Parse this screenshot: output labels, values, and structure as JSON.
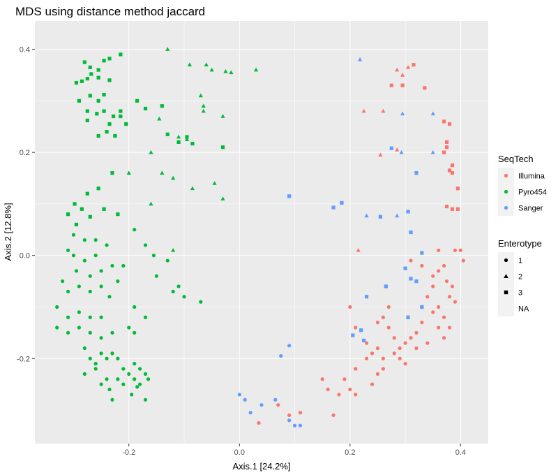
{
  "chart_data": {
    "type": "scatter",
    "title": "MDS using distance method jaccard",
    "xlabel": "Axis.1   [24.2%]",
    "ylabel": "Axis.2   [12.8%]",
    "xlim": [
      -0.37,
      0.45
    ],
    "ylim": [
      -0.365,
      0.455
    ],
    "x_ticks": [
      -0.2,
      0.0,
      0.2,
      0.4
    ],
    "x_tick_labels": [
      "-0.2",
      "0.0",
      "0.2",
      "0.4"
    ],
    "y_ticks": [
      -0.2,
      0.0,
      0.2,
      0.4
    ],
    "y_tick_labels": [
      "-0.2",
      "0.0",
      "0.2",
      "0.4"
    ],
    "colors": {
      "Illumina": "#F8766D",
      "Pyro454": "#00BA38",
      "Sanger": "#619CFF",
      "panel": "#EBEBEB",
      "grid": "#FFFFFF",
      "legend_key": "#F2F2F2"
    },
    "legend": {
      "position": "right",
      "color_title": "SeqTech",
      "color_entries": [
        "Illumina",
        "Pyro454",
        "Sanger"
      ],
      "shape_title": "Enterotype",
      "shape_entries": [
        {
          "label": "1",
          "shape": "circle"
        },
        {
          "label": "2",
          "shape": "triangle"
        },
        {
          "label": "3",
          "shape": "square"
        },
        {
          "label": "NA",
          "shape": "none"
        }
      ]
    },
    "series": [
      {
        "seqtech": "Pyro454",
        "enterotype": "3",
        "points": [
          [
            -0.295,
            0.335
          ],
          [
            -0.285,
            0.338
          ],
          [
            -0.275,
            0.343
          ],
          [
            -0.268,
            0.352
          ],
          [
            -0.255,
            0.36
          ],
          [
            -0.245,
            0.378
          ],
          [
            -0.235,
            0.382
          ],
          [
            -0.215,
            0.39
          ],
          [
            -0.28,
            0.375
          ],
          [
            -0.27,
            0.365
          ],
          [
            -0.255,
            0.345
          ],
          [
            -0.235,
            0.34
          ],
          [
            -0.29,
            0.3
          ],
          [
            -0.27,
            0.31
          ],
          [
            -0.255,
            0.3
          ],
          [
            -0.245,
            0.312
          ],
          [
            -0.275,
            0.28
          ],
          [
            -0.258,
            0.275
          ],
          [
            -0.245,
            0.28
          ],
          [
            -0.228,
            0.27
          ],
          [
            -0.215,
            0.28
          ],
          [
            -0.205,
            0.255
          ],
          [
            -0.235,
            0.255
          ],
          [
            -0.215,
            0.27
          ],
          [
            -0.24,
            0.24
          ],
          [
            -0.255,
            0.232
          ],
          [
            -0.275,
            0.262
          ],
          [
            -0.225,
            0.232
          ],
          [
            -0.185,
            0.3
          ],
          [
            -0.17,
            0.285
          ],
          [
            -0.14,
            0.29
          ],
          [
            -0.13,
            0.235
          ],
          [
            -0.11,
            0.22
          ],
          [
            -0.085,
            0.217
          ],
          [
            -0.03,
            0.21
          ],
          [
            -0.095,
            0.23
          ],
          [
            -0.23,
            0.16
          ],
          [
            -0.255,
            0.13
          ],
          [
            -0.275,
            0.12
          ],
          [
            -0.285,
            0.09
          ],
          [
            -0.27,
            0.075
          ],
          [
            -0.298,
            0.1
          ],
          [
            -0.245,
            0.09
          ],
          [
            -0.22,
            0.08
          ],
          [
            -0.31,
            0.08
          ],
          [
            -0.295,
            0.06
          ]
        ]
      },
      {
        "seqtech": "Pyro454",
        "enterotype": "2",
        "points": [
          [
            -0.13,
            0.4
          ],
          [
            -0.09,
            0.37
          ],
          [
            -0.06,
            0.37
          ],
          [
            -0.05,
            0.36
          ],
          [
            -0.025,
            0.357
          ],
          [
            -0.015,
            0.355
          ],
          [
            0.03,
            0.36
          ],
          [
            -0.07,
            0.31
          ],
          [
            -0.065,
            0.29
          ],
          [
            -0.065,
            0.28
          ],
          [
            -0.03,
            0.27
          ],
          [
            -0.145,
            0.265
          ],
          [
            -0.11,
            0.23
          ],
          [
            -0.095,
            0.225
          ],
          [
            -0.16,
            0.2
          ],
          [
            -0.2,
            0.16
          ],
          [
            -0.14,
            0.16
          ],
          [
            -0.12,
            0.15
          ],
          [
            -0.085,
            0.13
          ],
          [
            -0.045,
            0.14
          ],
          [
            -0.03,
            0.11
          ],
          [
            -0.16,
            0.1
          ],
          [
            -0.12,
            0.01
          ]
        ]
      },
      {
        "seqtech": "Pyro454",
        "enterotype": "1",
        "points": [
          [
            -0.3,
            0.04
          ],
          [
            -0.28,
            0.03
          ],
          [
            -0.26,
            0.03
          ],
          [
            -0.24,
            0.02
          ],
          [
            -0.26,
            0.0
          ],
          [
            -0.28,
            -0.01
          ],
          [
            -0.3,
            0.0
          ],
          [
            -0.31,
            0.01
          ],
          [
            -0.295,
            -0.03
          ],
          [
            -0.27,
            -0.04
          ],
          [
            -0.25,
            -0.03
          ],
          [
            -0.23,
            -0.02
          ],
          [
            -0.32,
            -0.05
          ],
          [
            -0.31,
            -0.07
          ],
          [
            -0.29,
            -0.06
          ],
          [
            -0.27,
            -0.07
          ],
          [
            -0.25,
            -0.06
          ],
          [
            -0.235,
            -0.08
          ],
          [
            -0.22,
            -0.05
          ],
          [
            -0.21,
            -0.02
          ],
          [
            -0.19,
            0.05
          ],
          [
            -0.17,
            0.02
          ],
          [
            -0.155,
            0.0
          ],
          [
            -0.13,
            -0.01
          ],
          [
            -0.15,
            -0.04
          ],
          [
            -0.11,
            -0.06
          ],
          [
            -0.1,
            -0.08
          ],
          [
            -0.12,
            -0.07
          ],
          [
            -0.07,
            -0.09
          ],
          [
            -0.19,
            -0.1
          ],
          [
            -0.17,
            -0.12
          ],
          [
            -0.19,
            -0.15
          ],
          [
            -0.2,
            -0.14
          ],
          [
            -0.33,
            -0.1
          ],
          [
            -0.31,
            -0.12
          ],
          [
            -0.29,
            -0.11
          ],
          [
            -0.27,
            -0.12
          ],
          [
            -0.25,
            -0.12
          ],
          [
            -0.29,
            -0.14
          ],
          [
            -0.27,
            -0.15
          ],
          [
            -0.25,
            -0.16
          ],
          [
            -0.23,
            -0.15
          ],
          [
            -0.33,
            -0.14
          ],
          [
            -0.31,
            -0.15
          ],
          [
            -0.28,
            -0.18
          ],
          [
            -0.27,
            -0.2
          ],
          [
            -0.26,
            -0.21
          ],
          [
            -0.25,
            -0.19
          ],
          [
            -0.24,
            -0.2
          ],
          [
            -0.23,
            -0.19
          ],
          [
            -0.22,
            -0.2
          ],
          [
            -0.21,
            -0.22
          ],
          [
            -0.2,
            -0.23
          ],
          [
            -0.19,
            -0.21
          ],
          [
            -0.18,
            -0.22
          ],
          [
            -0.17,
            -0.23
          ],
          [
            -0.28,
            -0.23
          ],
          [
            -0.26,
            -0.22
          ],
          [
            -0.24,
            -0.24
          ],
          [
            -0.22,
            -0.24
          ],
          [
            -0.25,
            -0.25
          ],
          [
            -0.235,
            -0.26
          ],
          [
            -0.21,
            -0.25
          ],
          [
            -0.19,
            -0.24
          ],
          [
            -0.18,
            -0.25
          ],
          [
            -0.165,
            -0.24
          ],
          [
            -0.195,
            -0.27
          ],
          [
            -0.23,
            -0.28
          ],
          [
            -0.17,
            -0.28
          ],
          [
            -0.185,
            -0.255
          ]
        ]
      },
      {
        "seqtech": "Illumina",
        "enterotype": "2",
        "points": [
          [
            0.295,
            0.35
          ],
          [
            0.305,
            0.365
          ],
          [
            0.285,
            0.36
          ],
          [
            0.225,
            0.28
          ],
          [
            0.26,
            0.28
          ],
          [
            0.255,
            0.195
          ],
          [
            0.285,
            0.205
          ],
          [
            0.215,
            0.01
          ]
        ]
      },
      {
        "seqtech": "Illumina",
        "enterotype": "3",
        "points": [
          [
            0.315,
            0.37
          ],
          [
            0.275,
            0.33
          ],
          [
            0.295,
            0.33
          ],
          [
            0.335,
            0.325
          ],
          [
            0.37,
            0.26
          ],
          [
            0.38,
            0.255
          ],
          [
            0.375,
            0.22
          ],
          [
            0.375,
            0.21
          ],
          [
            0.37,
            0.2
          ],
          [
            0.385,
            0.175
          ],
          [
            0.38,
            0.165
          ],
          [
            0.385,
            0.16
          ],
          [
            0.395,
            0.13
          ],
          [
            0.375,
            0.095
          ],
          [
            0.385,
            0.09
          ],
          [
            0.395,
            0.09
          ]
        ]
      },
      {
        "seqtech": "Illumina",
        "enterotype": "1",
        "points": [
          [
            0.36,
            0.01
          ],
          [
            0.39,
            0.01
          ],
          [
            0.4,
            0.01
          ],
          [
            0.405,
            -0.01
          ],
          [
            0.37,
            -0.02
          ],
          [
            0.36,
            -0.03
          ],
          [
            0.375,
            -0.05
          ],
          [
            0.385,
            -0.06
          ],
          [
            0.35,
            -0.06
          ],
          [
            0.34,
            -0.08
          ],
          [
            0.33,
            -0.1
          ],
          [
            0.35,
            -0.11
          ],
          [
            0.36,
            -0.1
          ],
          [
            0.37,
            -0.12
          ],
          [
            0.38,
            -0.14
          ],
          [
            0.33,
            -0.13
          ],
          [
            0.32,
            -0.15
          ],
          [
            0.31,
            -0.16
          ],
          [
            0.3,
            -0.17
          ],
          [
            0.29,
            -0.18
          ],
          [
            0.32,
            -0.18
          ],
          [
            0.34,
            -0.17
          ],
          [
            0.27,
            -0.1
          ],
          [
            0.26,
            -0.12
          ],
          [
            0.25,
            -0.13
          ],
          [
            0.27,
            -0.14
          ],
          [
            0.28,
            -0.16
          ],
          [
            0.28,
            -0.19
          ],
          [
            0.29,
            -0.2
          ],
          [
            0.3,
            -0.21
          ],
          [
            0.26,
            -0.2
          ],
          [
            0.24,
            -0.19
          ],
          [
            0.23,
            -0.17
          ],
          [
            0.21,
            -0.14
          ],
          [
            0.2,
            -0.1
          ],
          [
            0.21,
            -0.22
          ],
          [
            0.19,
            -0.24
          ],
          [
            0.2,
            -0.26
          ],
          [
            0.18,
            -0.27
          ],
          [
            0.16,
            -0.26
          ],
          [
            0.15,
            -0.24
          ],
          [
            0.21,
            -0.27
          ],
          [
            0.23,
            -0.2
          ],
          [
            0.25,
            -0.23
          ],
          [
            0.26,
            -0.22
          ],
          [
            0.24,
            -0.25
          ],
          [
            0.17,
            -0.31
          ],
          [
            0.11,
            -0.305
          ],
          [
            0.1,
            -0.33
          ],
          [
            0.09,
            -0.31
          ],
          [
            0.07,
            -0.29
          ],
          [
            0.035,
            -0.325
          ],
          [
            0.25,
            -0.18
          ],
          [
            0.31,
            -0.01
          ],
          [
            0.33,
            -0.02
          ],
          [
            0.35,
            -0.04
          ],
          [
            0.38,
            -0.08
          ],
          [
            0.39,
            -0.09
          ],
          [
            0.37,
            -0.16
          ],
          [
            0.36,
            -0.14
          ]
        ]
      },
      {
        "seqtech": "Sanger",
        "enterotype": "2",
        "points": [
          [
            0.218,
            0.38
          ],
          [
            0.295,
            0.275
          ],
          [
            0.35,
            0.275
          ],
          [
            0.293,
            0.2
          ],
          [
            0.35,
            0.2
          ],
          [
            0.23,
            0.077
          ],
          [
            0.285,
            0.077
          ]
        ]
      },
      {
        "seqtech": "Sanger",
        "enterotype": "3",
        "points": [
          [
            0.275,
            0.208
          ],
          [
            0.32,
            0.16
          ],
          [
            0.09,
            0.115
          ],
          [
            0.17,
            0.093
          ],
          [
            0.185,
            0.102
          ],
          [
            0.255,
            0.075
          ],
          [
            0.305,
            0.085
          ],
          [
            0.31,
            0.045
          ],
          [
            0.33,
            0.005
          ],
          [
            0.3,
            -0.025
          ],
          [
            0.31,
            -0.045
          ],
          [
            0.32,
            -0.05
          ],
          [
            0.265,
            -0.06
          ],
          [
            0.23,
            -0.08
          ],
          [
            0.33,
            -0.1
          ],
          [
            0.305,
            -0.12
          ],
          [
            0.22,
            -0.145
          ],
          [
            0.225,
            -0.165
          ],
          [
            0.205,
            -0.155
          ]
        ]
      },
      {
        "seqtech": "Sanger",
        "enterotype": "1",
        "points": [
          [
            0.09,
            -0.175
          ],
          [
            0.075,
            -0.195
          ],
          [
            0.065,
            -0.28
          ],
          [
            0.04,
            -0.29
          ],
          [
            0.02,
            -0.305
          ],
          [
            0.0,
            -0.27
          ],
          [
            0.01,
            -0.28
          ],
          [
            0.11,
            -0.33
          ],
          [
            0.1,
            -0.33
          ],
          [
            0.09,
            -0.32
          ]
        ]
      }
    ]
  }
}
